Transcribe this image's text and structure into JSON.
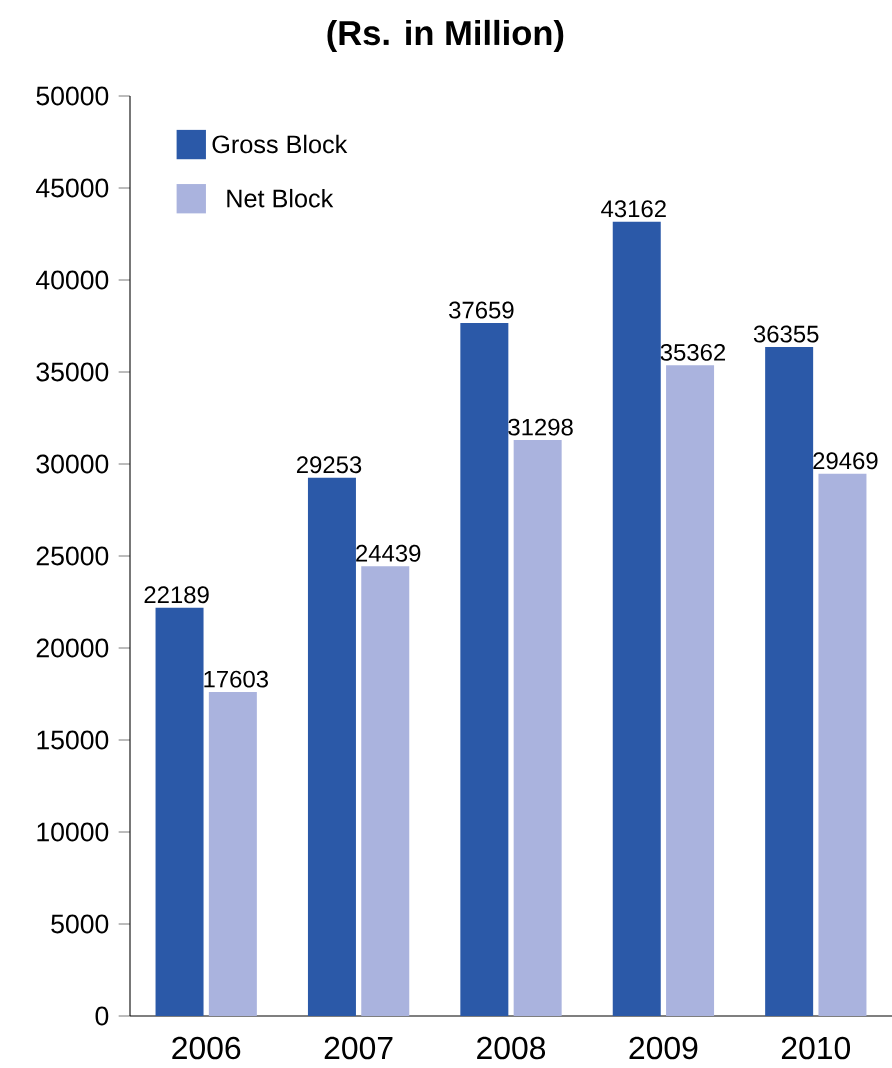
{
  "chart_data": {
    "type": "bar",
    "title": "(Rs. in Million)",
    "categories": [
      "2006",
      "2007",
      "2008",
      "2009",
      "2010"
    ],
    "series": [
      {
        "name": "Gross Block",
        "color": "#2b59a8",
        "values": [
          22189,
          29253,
          37659,
          43162,
          36355
        ]
      },
      {
        "name": "Net Block",
        "color": "#aab3de",
        "values": [
          17603,
          24439,
          31298,
          35362,
          29469
        ]
      }
    ],
    "ylim": [
      0,
      50000
    ],
    "yticks": [
      0,
      5000,
      10000,
      15000,
      20000,
      25000,
      30000,
      35000,
      40000,
      45000,
      50000
    ],
    "data_labels": true,
    "legend": "top left",
    "grid": false
  }
}
